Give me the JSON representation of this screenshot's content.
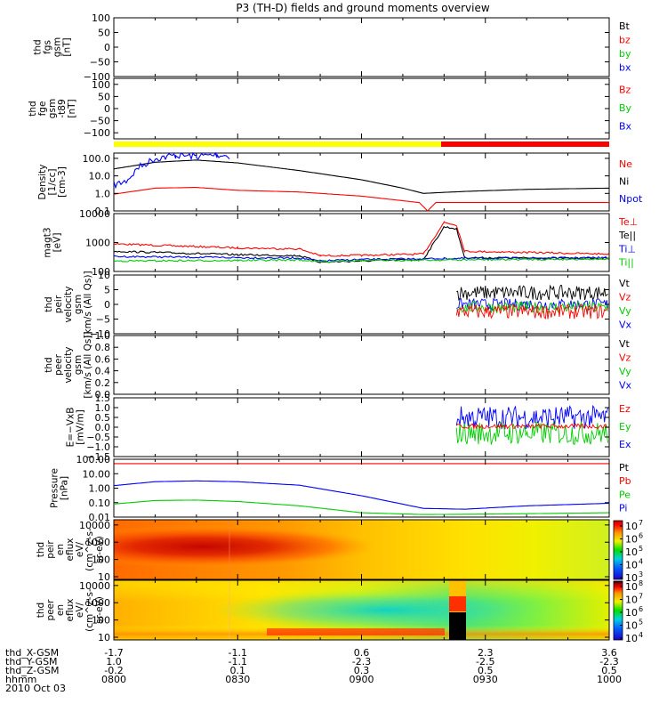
{
  "title": "P3 (TH-D) fields and ground moments overview",
  "footer": {
    "rows": [
      {
        "label": "thd_X-GSM",
        "values": [
          "-1.7",
          "-1.1",
          "0.6",
          "2.3",
          "3.6"
        ]
      },
      {
        "label": "thd_Y-GSM",
        "values": [
          "1.0",
          "-1.1",
          "-2.3",
          "-2.5",
          "-2.3"
        ]
      },
      {
        "label": "thd_Z-GSM",
        "values": [
          "-0.2",
          "0.1",
          "0.3",
          "0.5",
          "0.5"
        ]
      },
      {
        "label": "hhmm",
        "values": [
          "0800",
          "0830",
          "0900",
          "0930",
          "1000"
        ]
      }
    ],
    "date": "2010 Oct 03"
  },
  "colors": {
    "black": "#000000",
    "red": "#ff0000",
    "green": "#00cc00",
    "blue": "#0000ff",
    "yellow": "#ffff00"
  },
  "chart_data": [
    {
      "type": "line",
      "name": "fgs-gsm",
      "ylabel": [
        "thd",
        "fgs",
        "gsm",
        "[nT]"
      ],
      "ylim": [
        -100,
        100
      ],
      "yticks": [
        "100",
        "50",
        "0",
        "−50",
        "−100"
      ],
      "legend": [
        {
          "label": "Bt",
          "color": "black"
        },
        {
          "label": "bz",
          "color": "red"
        },
        {
          "label": "by",
          "color": "green"
        },
        {
          "label": "bx",
          "color": "blue"
        }
      ],
      "series": []
    },
    {
      "type": "line",
      "name": "fge-gsm",
      "ylabel": [
        "thd",
        "fge",
        "gsm",
        "-t89",
        "[nT]"
      ],
      "ylim": [
        -125,
        125
      ],
      "yticks": [
        "100",
        "50",
        "0",
        "−50",
        "−100"
      ],
      "legend": [
        {
          "label": "Bz",
          "color": "red"
        },
        {
          "label": "By",
          "color": "green"
        },
        {
          "label": "Bx",
          "color": "blue"
        }
      ],
      "series": []
    },
    {
      "type": "bar",
      "name": "mode-bar",
      "segments": [
        {
          "from": "0800",
          "to": "0915",
          "color": "yellow"
        },
        {
          "from": "0915",
          "to": "1000",
          "color": "red"
        }
      ]
    },
    {
      "type": "line",
      "name": "density",
      "ylabel": [
        "Density",
        "[1/cc]",
        "[cm-3]"
      ],
      "log": true,
      "ylim": [
        0.1,
        200
      ],
      "yticks": [
        "100.0",
        "10.0",
        "1.0",
        "0.1"
      ],
      "legend": [
        {
          "label": "Ne",
          "color": "red"
        },
        {
          "label": "Ni",
          "color": "black"
        },
        {
          "label": "Npot",
          "color": "blue"
        }
      ],
      "series": [
        {
          "color": "black",
          "x": [
            "0800",
            "0810",
            "0820",
            "0830",
            "0845",
            "0900",
            "0910",
            "0915",
            "0925",
            "0940",
            "1000"
          ],
          "y": [
            25,
            60,
            80,
            55,
            20,
            6,
            2,
            1,
            1.3,
            1.7,
            2
          ]
        },
        {
          "color": "red",
          "x": [
            "0800",
            "0810",
            "0820",
            "0830",
            "0845",
            "0900",
            "0914",
            "0916",
            "0918",
            "1000"
          ],
          "y": [
            0.9,
            2,
            2.2,
            1.5,
            1.2,
            0.7,
            0.3,
            0.1,
            0.3,
            0.3
          ]
        },
        {
          "color": "blue",
          "x": [
            "0800",
            "0803",
            "0806",
            "0810",
            "0815",
            "0820",
            "0825",
            "0828"
          ],
          "y": [
            3,
            5,
            30,
            100,
            150,
            130,
            160,
            140
          ]
        }
      ]
    },
    {
      "type": "line",
      "name": "temperature",
      "ylabel": [
        "magt3",
        "[eV]"
      ],
      "log": true,
      "ylim": [
        100,
        10000
      ],
      "yticks": [
        "10000",
        "1000",
        "100"
      ],
      "legend": [
        {
          "label": "Te⊥",
          "color": "red"
        },
        {
          "label": "Te||",
          "color": "black"
        },
        {
          "label": "Ti⊥",
          "color": "blue"
        },
        {
          "label": "Ti||",
          "color": "green"
        }
      ],
      "series": [
        {
          "color": "red",
          "x": [
            "0800",
            "0830",
            "0845",
            "0850",
            "0900",
            "0915",
            "0920",
            "0923",
            "0925",
            "1000"
          ],
          "y": [
            900,
            650,
            600,
            350,
            360,
            400,
            5000,
            4000,
            500,
            400
          ]
        },
        {
          "color": "black",
          "x": [
            "0800",
            "0830",
            "0845",
            "0850",
            "0900",
            "0915",
            "0920",
            "0923",
            "0925",
            "1000"
          ],
          "y": [
            500,
            380,
            350,
            210,
            230,
            260,
            3500,
            3000,
            300,
            280
          ]
        },
        {
          "color": "blue",
          "x": [
            "0800",
            "0830",
            "0845",
            "0850",
            "0900",
            "0920",
            "1000"
          ],
          "y": [
            330,
            300,
            290,
            230,
            260,
            280,
            300
          ]
        },
        {
          "color": "green",
          "x": [
            "0800",
            "0830",
            "0845",
            "0850",
            "0900",
            "1000"
          ],
          "y": [
            230,
            240,
            250,
            220,
            240,
            270
          ]
        }
      ]
    },
    {
      "type": "line",
      "name": "peir-velocity",
      "ylabel": [
        "thd",
        "peir",
        "velocity",
        "gsm",
        "[km/s (All Qs)]"
      ],
      "ylim": [
        -10,
        10
      ],
      "yticks": [
        "10",
        "5",
        "0",
        "−5",
        "−10"
      ],
      "legend": [
        {
          "label": "Vt",
          "color": "black"
        },
        {
          "label": "Vz",
          "color": "red"
        },
        {
          "label": "Vy",
          "color": "green"
        },
        {
          "label": "Vx",
          "color": "blue"
        }
      ],
      "start": "0923",
      "series": [
        {
          "color": "black",
          "mean": 4,
          "amp": 2.5
        },
        {
          "color": "blue",
          "mean": 0,
          "amp": 2
        },
        {
          "color": "green",
          "mean": -1,
          "amp": 2
        },
        {
          "color": "red",
          "mean": -2.5,
          "amp": 2.5
        }
      ]
    },
    {
      "type": "line",
      "name": "peer-velocity",
      "ylabel": [
        "thd",
        "peer",
        "velocity",
        "gsm",
        "[km/s (All Qs)]"
      ],
      "ylim": [
        0,
        1
      ],
      "yticks": [
        "1.0",
        "0.8",
        "0.6",
        "0.4",
        "0.2",
        "0.0"
      ],
      "legend": [
        {
          "label": "Vt",
          "color": "black"
        },
        {
          "label": "Vz",
          "color": "red"
        },
        {
          "label": "Vy",
          "color": "green"
        },
        {
          "label": "Vx",
          "color": "blue"
        }
      ],
      "series": []
    },
    {
      "type": "line",
      "name": "efield",
      "ylabel": [
        "E=−VxB",
        "[mV/m]"
      ],
      "ylim": [
        -1.5,
        1.5
      ],
      "yticks": [
        "1.5",
        "1.0",
        "0.5",
        "0.0",
        "−0.5",
        "−1.0",
        "−1.5"
      ],
      "legend": [
        {
          "label": "Ez",
          "color": "red"
        },
        {
          "label": "Ey",
          "color": "green"
        },
        {
          "label": "Ex",
          "color": "blue"
        }
      ],
      "start": "0923",
      "series": [
        {
          "color": "blue",
          "mean": 0.5,
          "amp": 0.6
        },
        {
          "color": "green",
          "mean": -0.3,
          "amp": 0.6
        },
        {
          "color": "red",
          "mean": 0.05,
          "amp": 0.12
        }
      ]
    },
    {
      "type": "line",
      "name": "pressure",
      "ylabel": [
        "Pressure",
        "[nPa]"
      ],
      "log": true,
      "ylim": [
        0.01,
        100
      ],
      "yticks": [
        "100.00",
        "10.00",
        "1.00",
        "0.10",
        "0.01"
      ],
      "legend": [
        {
          "label": "Pt",
          "color": "black"
        },
        {
          "label": "Pb",
          "color": "red"
        },
        {
          "label": "Pe",
          "color": "green"
        },
        {
          "label": "Pi",
          "color": "blue"
        }
      ],
      "series": [
        {
          "color": "red",
          "x": [
            "0800",
            "0900",
            "1000"
          ],
          "y": [
            50,
            50,
            50
          ]
        },
        {
          "color": "blue",
          "x": [
            "0800",
            "0810",
            "0820",
            "0830",
            "0845",
            "0900",
            "0915",
            "0925",
            "0940",
            "1000"
          ],
          "y": [
            1.5,
            2.8,
            3.2,
            2.8,
            1.6,
            0.3,
            0.04,
            0.035,
            0.06,
            0.09
          ]
        },
        {
          "color": "green",
          "x": [
            "0800",
            "0810",
            "0820",
            "0830",
            "0845",
            "0900",
            "0915",
            "0930",
            "1000"
          ],
          "y": [
            0.08,
            0.14,
            0.15,
            0.12,
            0.06,
            0.02,
            0.015,
            0.016,
            0.02
          ]
        }
      ]
    },
    {
      "type": "heatmap",
      "name": "peir-spectrogram",
      "ylabel": [
        "thd",
        "peir",
        "en",
        "eflux",
        "eV/",
        "(cm^2-s-",
        "sr-eV)"
      ],
      "log": true,
      "ylim": [
        7,
        20000
      ],
      "yticks": [
        "10000",
        "1000",
        "100",
        "10"
      ],
      "colorbar": {
        "labels": [
          "10",
          "10",
          "10",
          "10",
          "10"
        ],
        "exponents": [
          "7",
          "6",
          "5",
          "4",
          "3"
        ]
      }
    },
    {
      "type": "heatmap",
      "name": "peer-spectrogram",
      "ylabel": [
        "thd",
        "peer",
        "en",
        "eflux",
        "eV/",
        "(cm^2-s-",
        "sr-eV)"
      ],
      "log": true,
      "ylim": [
        7,
        20000
      ],
      "yticks": [
        "10000",
        "1000",
        "100",
        "10"
      ],
      "colorbar": {
        "labels": [
          "10",
          "10",
          "10",
          "10",
          "10"
        ],
        "exponents": [
          "8",
          "7",
          "6",
          "5",
          "4"
        ]
      }
    }
  ]
}
